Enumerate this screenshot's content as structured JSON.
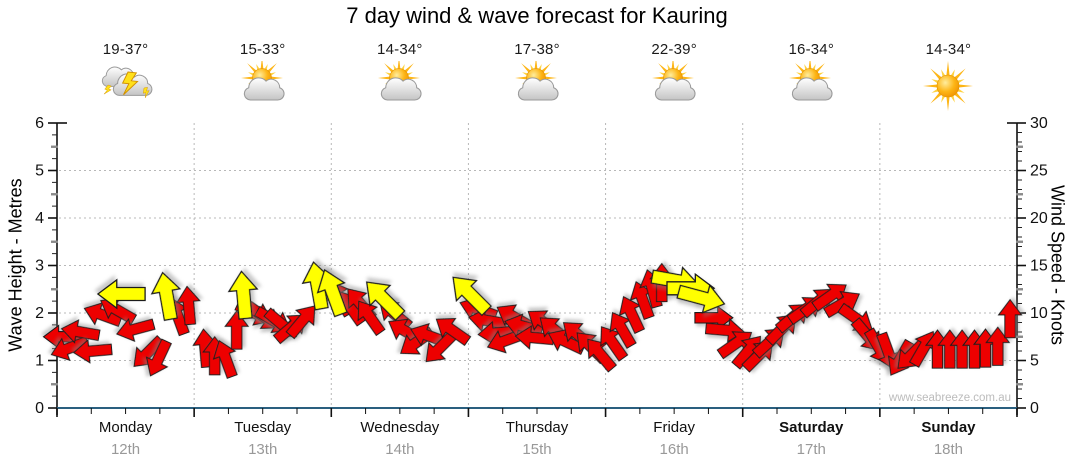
{
  "title": "7 day wind & wave forecast for Kauring",
  "watermark": "www.seabreeze.com.au",
  "days": [
    {
      "name": "Monday",
      "date": "12th",
      "temp": "19-37°",
      "icon": "thunderstorm",
      "bold": false
    },
    {
      "name": "Tuesday",
      "date": "13th",
      "temp": "15-33°",
      "icon": "sun-cloud",
      "bold": false
    },
    {
      "name": "Wednesday",
      "date": "14th",
      "temp": "14-34°",
      "icon": "sun-cloud",
      "bold": false
    },
    {
      "name": "Thursday",
      "date": "15th",
      "temp": "17-38°",
      "icon": "sun-cloud",
      "bold": false
    },
    {
      "name": "Friday",
      "date": "16th",
      "temp": "22-39°",
      "icon": "sun-cloud",
      "bold": false
    },
    {
      "name": "Saturday",
      "date": "17th",
      "temp": "16-34°",
      "icon": "sun-cloud",
      "bold": true
    },
    {
      "name": "Sunday",
      "date": "18th",
      "temp": "14-34°",
      "icon": "sunny",
      "bold": true
    }
  ],
  "axes": {
    "left": {
      "label": "Wave Height - Metres",
      "ticks": [
        0,
        1,
        2,
        3,
        4,
        5,
        6
      ],
      "range": [
        0,
        6
      ]
    },
    "right": {
      "label": "Wind Speed - Knots",
      "ticks": [
        0,
        5,
        10,
        15,
        20,
        25,
        30
      ],
      "range": [
        0,
        30
      ]
    },
    "x": {
      "days": 7,
      "minor_ticks_per_day": 4,
      "grid": "dotted day boundaries"
    }
  },
  "colors": {
    "arrow_red": "#ed0000",
    "arrow_yellow": "#ffff00",
    "arrow_outline": "#1a1a1a",
    "axis_bottom": "#2a5f7f",
    "axis_spine": "#111111",
    "grid": "#b8b8b8",
    "minor_gray_tick": "#8a8a8a",
    "date_text": "#999999",
    "watermark_text": "#bcbcbc"
  },
  "chart_data": {
    "type": "scatter",
    "title": "7 day wind & wave forecast for Kauring",
    "xlabel": "days (Monday 12th - Sunday 18th)",
    "ylabel_left": "Wave Height - Metres",
    "ylabel_right": "Wind Speed - Knots",
    "ylim_left": [
      0,
      6
    ],
    "ylim_right": [
      0,
      30
    ],
    "grid": true,
    "legend": "none",
    "note": "arrows: [t = days from Monday 00:00 (0-7), wind speed knots (right axis; wave metres = knots/5), screen direction arrow points in degrees (0=right,90=up,180=left,270=down), color r=red y=yellow]",
    "arrows": [
      [
        0.04,
        7.5,
        180,
        "r"
      ],
      [
        0.09,
        6.3,
        200,
        "r"
      ],
      [
        0.17,
        8.0,
        170,
        "r"
      ],
      [
        0.26,
        6.0,
        185,
        "r"
      ],
      [
        0.33,
        9.8,
        160,
        "r"
      ],
      [
        0.44,
        10.3,
        150,
        "r"
      ],
      [
        0.47,
        12.0,
        180,
        "y"
      ],
      [
        0.57,
        8.3,
        195,
        "r"
      ],
      [
        0.66,
        5.8,
        225,
        "r"
      ],
      [
        0.74,
        5.2,
        245,
        "r"
      ],
      [
        0.8,
        11.8,
        100,
        "y"
      ],
      [
        0.88,
        9.7,
        110,
        "r"
      ],
      [
        0.96,
        10.8,
        95,
        "r"
      ],
      [
        1.08,
        6.3,
        95,
        "r"
      ],
      [
        1.15,
        5.5,
        90,
        "r"
      ],
      [
        1.23,
        5.2,
        110,
        "r"
      ],
      [
        1.31,
        8.2,
        90,
        "r"
      ],
      [
        1.36,
        11.9,
        95,
        "y"
      ],
      [
        1.44,
        10.0,
        335,
        "r"
      ],
      [
        1.51,
        9.6,
        325,
        "r"
      ],
      [
        1.58,
        9.2,
        330,
        "r"
      ],
      [
        1.64,
        8.8,
        320,
        "r"
      ],
      [
        1.71,
        8.5,
        40,
        "r"
      ],
      [
        1.79,
        9.2,
        50,
        "r"
      ],
      [
        1.9,
        12.9,
        100,
        "y"
      ],
      [
        2.01,
        12.2,
        110,
        "y"
      ],
      [
        2.06,
        11.6,
        120,
        "r"
      ],
      [
        2.14,
        10.6,
        125,
        "r"
      ],
      [
        2.21,
        11.0,
        130,
        "r"
      ],
      [
        2.28,
        9.6,
        125,
        "r"
      ],
      [
        2.38,
        11.5,
        135,
        "y"
      ],
      [
        2.46,
        9.9,
        140,
        "r"
      ],
      [
        2.54,
        8.1,
        150,
        "r"
      ],
      [
        2.62,
        6.9,
        215,
        "r"
      ],
      [
        2.71,
        7.6,
        160,
        "r"
      ],
      [
        2.79,
        6.3,
        225,
        "r"
      ],
      [
        2.88,
        8.2,
        145,
        "r"
      ],
      [
        3.01,
        12.0,
        135,
        "y"
      ],
      [
        3.07,
        10.4,
        160,
        "r"
      ],
      [
        3.14,
        9.2,
        170,
        "r"
      ],
      [
        3.21,
        7.9,
        185,
        "r"
      ],
      [
        3.27,
        7.1,
        200,
        "r"
      ],
      [
        3.33,
        9.6,
        150,
        "r"
      ],
      [
        3.4,
        8.6,
        165,
        "r"
      ],
      [
        3.48,
        7.4,
        175,
        "r"
      ],
      [
        3.55,
        9.0,
        145,
        "r"
      ],
      [
        3.63,
        8.2,
        140,
        "r"
      ],
      [
        3.71,
        7.0,
        155,
        "r"
      ],
      [
        3.8,
        7.7,
        140,
        "r"
      ],
      [
        3.89,
        6.5,
        135,
        "r"
      ],
      [
        3.96,
        5.7,
        130,
        "r"
      ],
      [
        4.05,
        6.9,
        125,
        "r"
      ],
      [
        4.12,
        8.3,
        120,
        "r"
      ],
      [
        4.19,
        9.9,
        115,
        "r"
      ],
      [
        4.27,
        11.4,
        110,
        "r"
      ],
      [
        4.34,
        12.6,
        105,
        "r"
      ],
      [
        4.41,
        13.2,
        90,
        "r"
      ],
      [
        4.51,
        13.4,
        350,
        "y"
      ],
      [
        4.62,
        12.6,
        0,
        "y"
      ],
      [
        4.7,
        11.6,
        345,
        "y"
      ],
      [
        4.79,
        9.5,
        0,
        "r"
      ],
      [
        4.87,
        8.2,
        355,
        "r"
      ],
      [
        4.95,
        6.8,
        35,
        "r"
      ],
      [
        5.04,
        6.0,
        50,
        "r"
      ],
      [
        5.12,
        5.6,
        45,
        "r"
      ],
      [
        5.2,
        7.0,
        42,
        "r"
      ],
      [
        5.29,
        8.4,
        45,
        "r"
      ],
      [
        5.37,
        9.6,
        40,
        "r"
      ],
      [
        5.46,
        10.4,
        35,
        "r"
      ],
      [
        5.55,
        11.2,
        40,
        "r"
      ],
      [
        5.64,
        11.8,
        35,
        "r"
      ],
      [
        5.73,
        11.0,
        30,
        "r"
      ],
      [
        5.83,
        9.4,
        325,
        "r"
      ],
      [
        5.91,
        7.6,
        310,
        "r"
      ],
      [
        5.99,
        6.4,
        300,
        "r"
      ],
      [
        6.06,
        5.9,
        290,
        "r"
      ],
      [
        6.15,
        5.2,
        240,
        "r"
      ],
      [
        6.23,
        5.6,
        225,
        "r"
      ],
      [
        6.32,
        6.3,
        60,
        "r"
      ],
      [
        6.42,
        6.2,
        90,
        "r"
      ],
      [
        6.51,
        6.2,
        90,
        "r"
      ],
      [
        6.6,
        6.2,
        90,
        "r"
      ],
      [
        6.69,
        6.2,
        90,
        "r"
      ],
      [
        6.77,
        6.3,
        90,
        "r"
      ],
      [
        6.86,
        6.5,
        90,
        "r"
      ],
      [
        6.95,
        9.4,
        90,
        "r"
      ]
    ]
  }
}
